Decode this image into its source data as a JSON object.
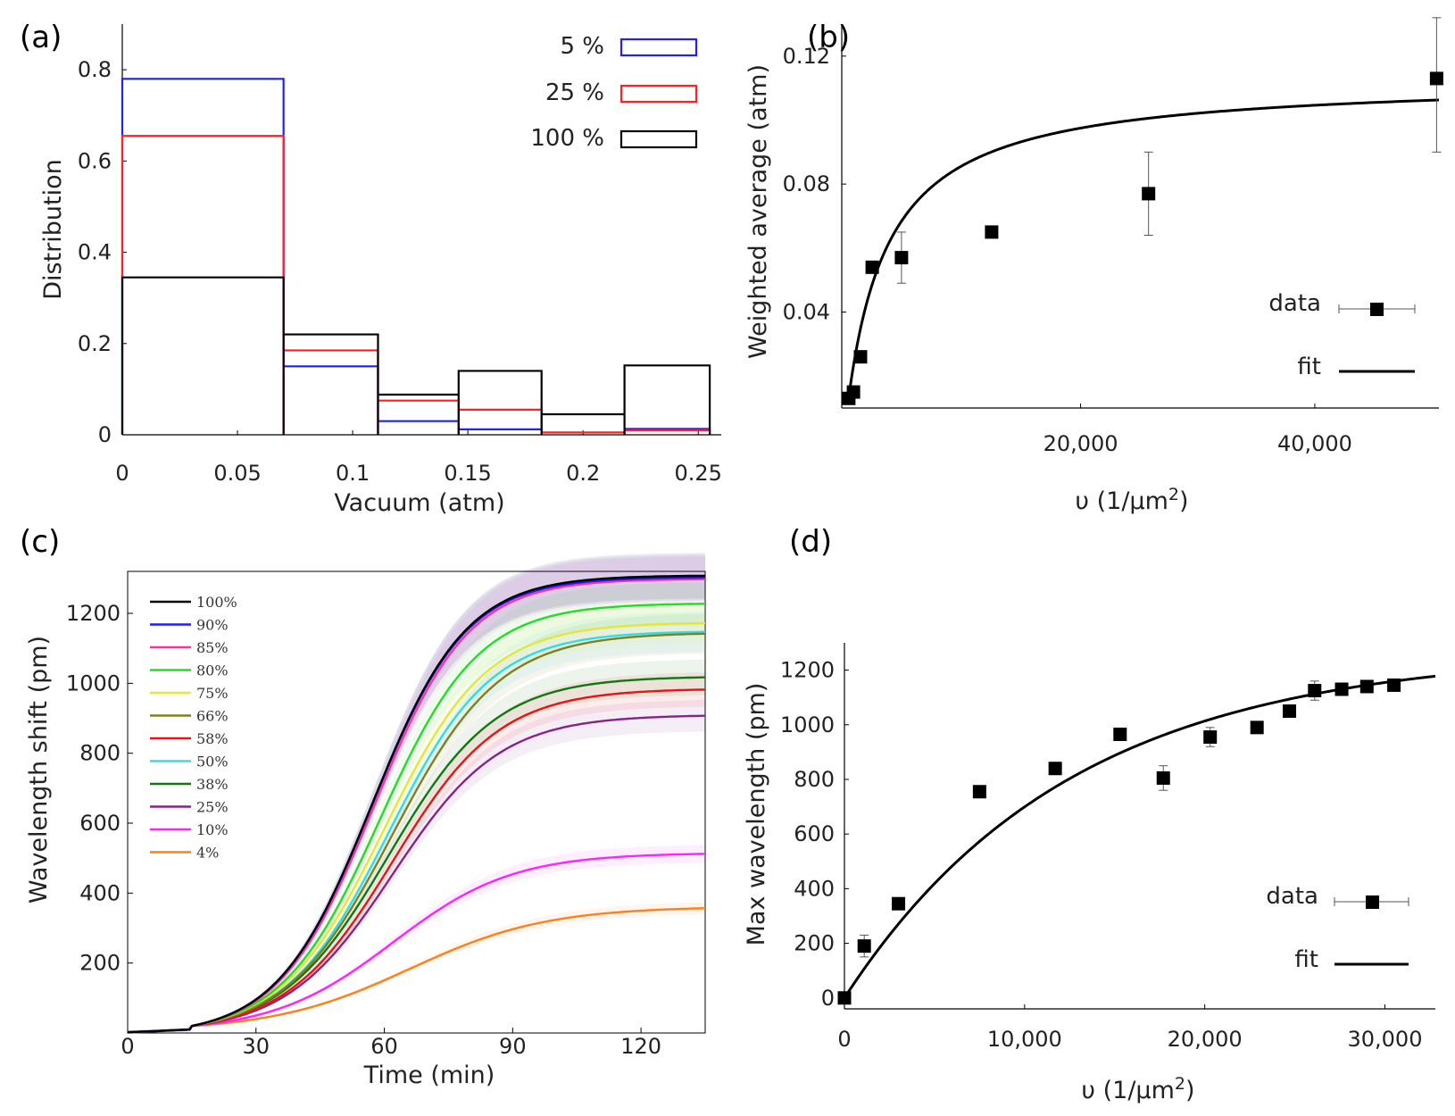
{
  "figure": {
    "panels": [
      "(a)",
      "(b)",
      "(c)",
      "(d)"
    ]
  },
  "chart_data": [
    {
      "id": "a",
      "panel_label": "(a)",
      "type": "bar",
      "style": "step-histogram",
      "xlabel": "Vacuum (atm)",
      "ylabel": "Distribution",
      "xlim": [
        0,
        0.26
      ],
      "ylim": [
        0,
        0.9
      ],
      "xticks": [
        0,
        0.05,
        0.1,
        0.15,
        0.2,
        0.25
      ],
      "xtick_labels": [
        "0",
        "0.05",
        "0.1",
        "0.15",
        "0.2",
        "0.25"
      ],
      "yticks": [
        0,
        0.2,
        0.4,
        0.6,
        0.8
      ],
      "ytick_labels": [
        "0",
        "0.2",
        "0.4",
        "0.6",
        "0.8"
      ],
      "bin_edges": [
        0,
        0.07,
        0.111,
        0.146,
        0.182,
        0.218,
        0.255
      ],
      "series": [
        {
          "name": "5 %",
          "color": "#1f1fff",
          "values": [
            0.78,
            0.15,
            0.03,
            0.012,
            0.005,
            0.013
          ]
        },
        {
          "name": "25 %",
          "color": "#ff2020",
          "values": [
            0.655,
            0.185,
            0.075,
            0.055,
            0.005,
            0.01
          ]
        },
        {
          "name": "100 %",
          "color": "#000000",
          "values": [
            0.345,
            0.22,
            0.088,
            0.14,
            0.045,
            0.152
          ]
        }
      ],
      "legend_position": "top-right"
    },
    {
      "id": "b",
      "panel_label": "(b)",
      "type": "scatter",
      "xlabel_prefix": "υ (1/",
      "xlabel_mu": "μ",
      "xlabel_unit": "m",
      "xlabel_exp": "2",
      "xlabel_suffix": ")",
      "ylabel": "Weighted average (atm)",
      "xlim": [
        -400,
        50600
      ],
      "ylim": [
        0.01,
        0.13
      ],
      "xticks": [
        20000,
        40000
      ],
      "xtick_labels": [
        "20,000",
        "40,000"
      ],
      "yticks": [
        0.04,
        0.08,
        0.12
      ],
      "ytick_labels": [
        "0.04",
        "0.08",
        "0.12"
      ],
      "points": {
        "x": [
          200,
          600,
          1200,
          2200,
          4700,
          12400,
          25800,
          50400
        ],
        "y": [
          0.013,
          0.015,
          0.026,
          0.054,
          0.057,
          0.065,
          0.077,
          0.113
        ],
        "yerr": [
          0,
          0,
          0,
          0,
          0.008,
          0,
          0.013,
          0.023
        ]
      },
      "fit": {
        "type": "saturation",
        "amplitude": 0.101,
        "half": 3600,
        "offset_x": 150,
        "baseline": 0.012,
        "x_max": 50600
      },
      "legend": {
        "data_label": "data",
        "fit_label": "fit"
      },
      "legend_position": "lower-right"
    },
    {
      "id": "c",
      "panel_label": "(c)",
      "type": "line",
      "xlabel": "Time (min)",
      "ylabel": "Wavelength shift (pm)",
      "xlim": [
        0,
        135
      ],
      "ylim": [
        0,
        1320
      ],
      "xticks": [
        0,
        30,
        60,
        90,
        120
      ],
      "xtick_labels": [
        "0",
        "30",
        "60",
        "90",
        "120"
      ],
      "yticks": [
        200,
        400,
        600,
        800,
        1000,
        1200
      ],
      "ytick_labels": [
        "200",
        "400",
        "600",
        "800",
        "1000",
        "1200"
      ],
      "onset_time": 15,
      "series": [
        {
          "name": "100%",
          "color": "#000000",
          "final": 1300,
          "midpoint": 57,
          "width": 11
        },
        {
          "name": "90%",
          "color": "#1a1aff",
          "final": 1295,
          "midpoint": 57,
          "width": 11
        },
        {
          "name": "85%",
          "color": "#ff3399",
          "final": 1290,
          "midpoint": 57.5,
          "width": 11
        },
        {
          "name": "80%",
          "color": "#22dd22",
          "final": 1220,
          "midpoint": 59,
          "width": 11.5
        },
        {
          "name": "75%",
          "color": "#e6e633",
          "final": 1165,
          "midpoint": 60,
          "width": 12
        },
        {
          "name": "66%",
          "color": "#808020",
          "final": 1135,
          "midpoint": 62,
          "width": 12.5
        },
        {
          "name": "58%",
          "color": "#ee1111",
          "final": 975,
          "midpoint": 62,
          "width": 12.5
        },
        {
          "name": "50%",
          "color": "#33dddd",
          "final": 1140,
          "midpoint": 61,
          "width": 12
        },
        {
          "name": "38%",
          "color": "#117711",
          "final": 1010,
          "midpoint": 61,
          "width": 12.5
        },
        {
          "name": "25%",
          "color": "#882288",
          "final": 900,
          "midpoint": 62,
          "width": 12.5
        },
        {
          "name": "10%",
          "color": "#ff22ff",
          "final": 505,
          "midpoint": 62,
          "width": 14
        },
        {
          "name": "4%",
          "color": "#ff7f1a",
          "final": 350,
          "midpoint": 66,
          "width": 16
        }
      ],
      "legend_position": "top-left"
    },
    {
      "id": "d",
      "panel_label": "(d)",
      "type": "scatter",
      "xlabel_prefix": "υ (1/",
      "xlabel_mu": "μ",
      "xlabel_unit": "m",
      "xlabel_exp": "2",
      "xlabel_suffix": ")",
      "ylabel": "Max wavelength (pm)",
      "xlim": [
        0,
        32800
      ],
      "ylim": [
        -40,
        1300
      ],
      "xticks": [
        0,
        10000,
        20000,
        30000
      ],
      "xtick_labels": [
        "0",
        "10,000",
        "20,000",
        "30,000"
      ],
      "yticks": [
        0,
        200,
        400,
        600,
        800,
        1000,
        1200
      ],
      "ytick_labels": [
        "0",
        "200",
        "400",
        "600",
        "800",
        "1000",
        "1200"
      ],
      "points": {
        "x": [
          0,
          1100,
          3000,
          7500,
          11700,
          15300,
          17700,
          20300,
          22900,
          24700,
          26100,
          27600,
          29000,
          30500
        ],
        "y": [
          0,
          190,
          345,
          755,
          840,
          965,
          805,
          955,
          990,
          1050,
          1125,
          1130,
          1140,
          1145
        ],
        "yerr": [
          0,
          40,
          0,
          0,
          0,
          0,
          45,
          35,
          0,
          0,
          35,
          0,
          0,
          0
        ]
      },
      "fit": {
        "type": "exponential-saturation",
        "amplitude": 1270,
        "scale": 12500,
        "x_max": 32800
      },
      "legend": {
        "data_label": "data",
        "fit_label": "fit"
      },
      "legend_position": "lower-right"
    }
  ]
}
